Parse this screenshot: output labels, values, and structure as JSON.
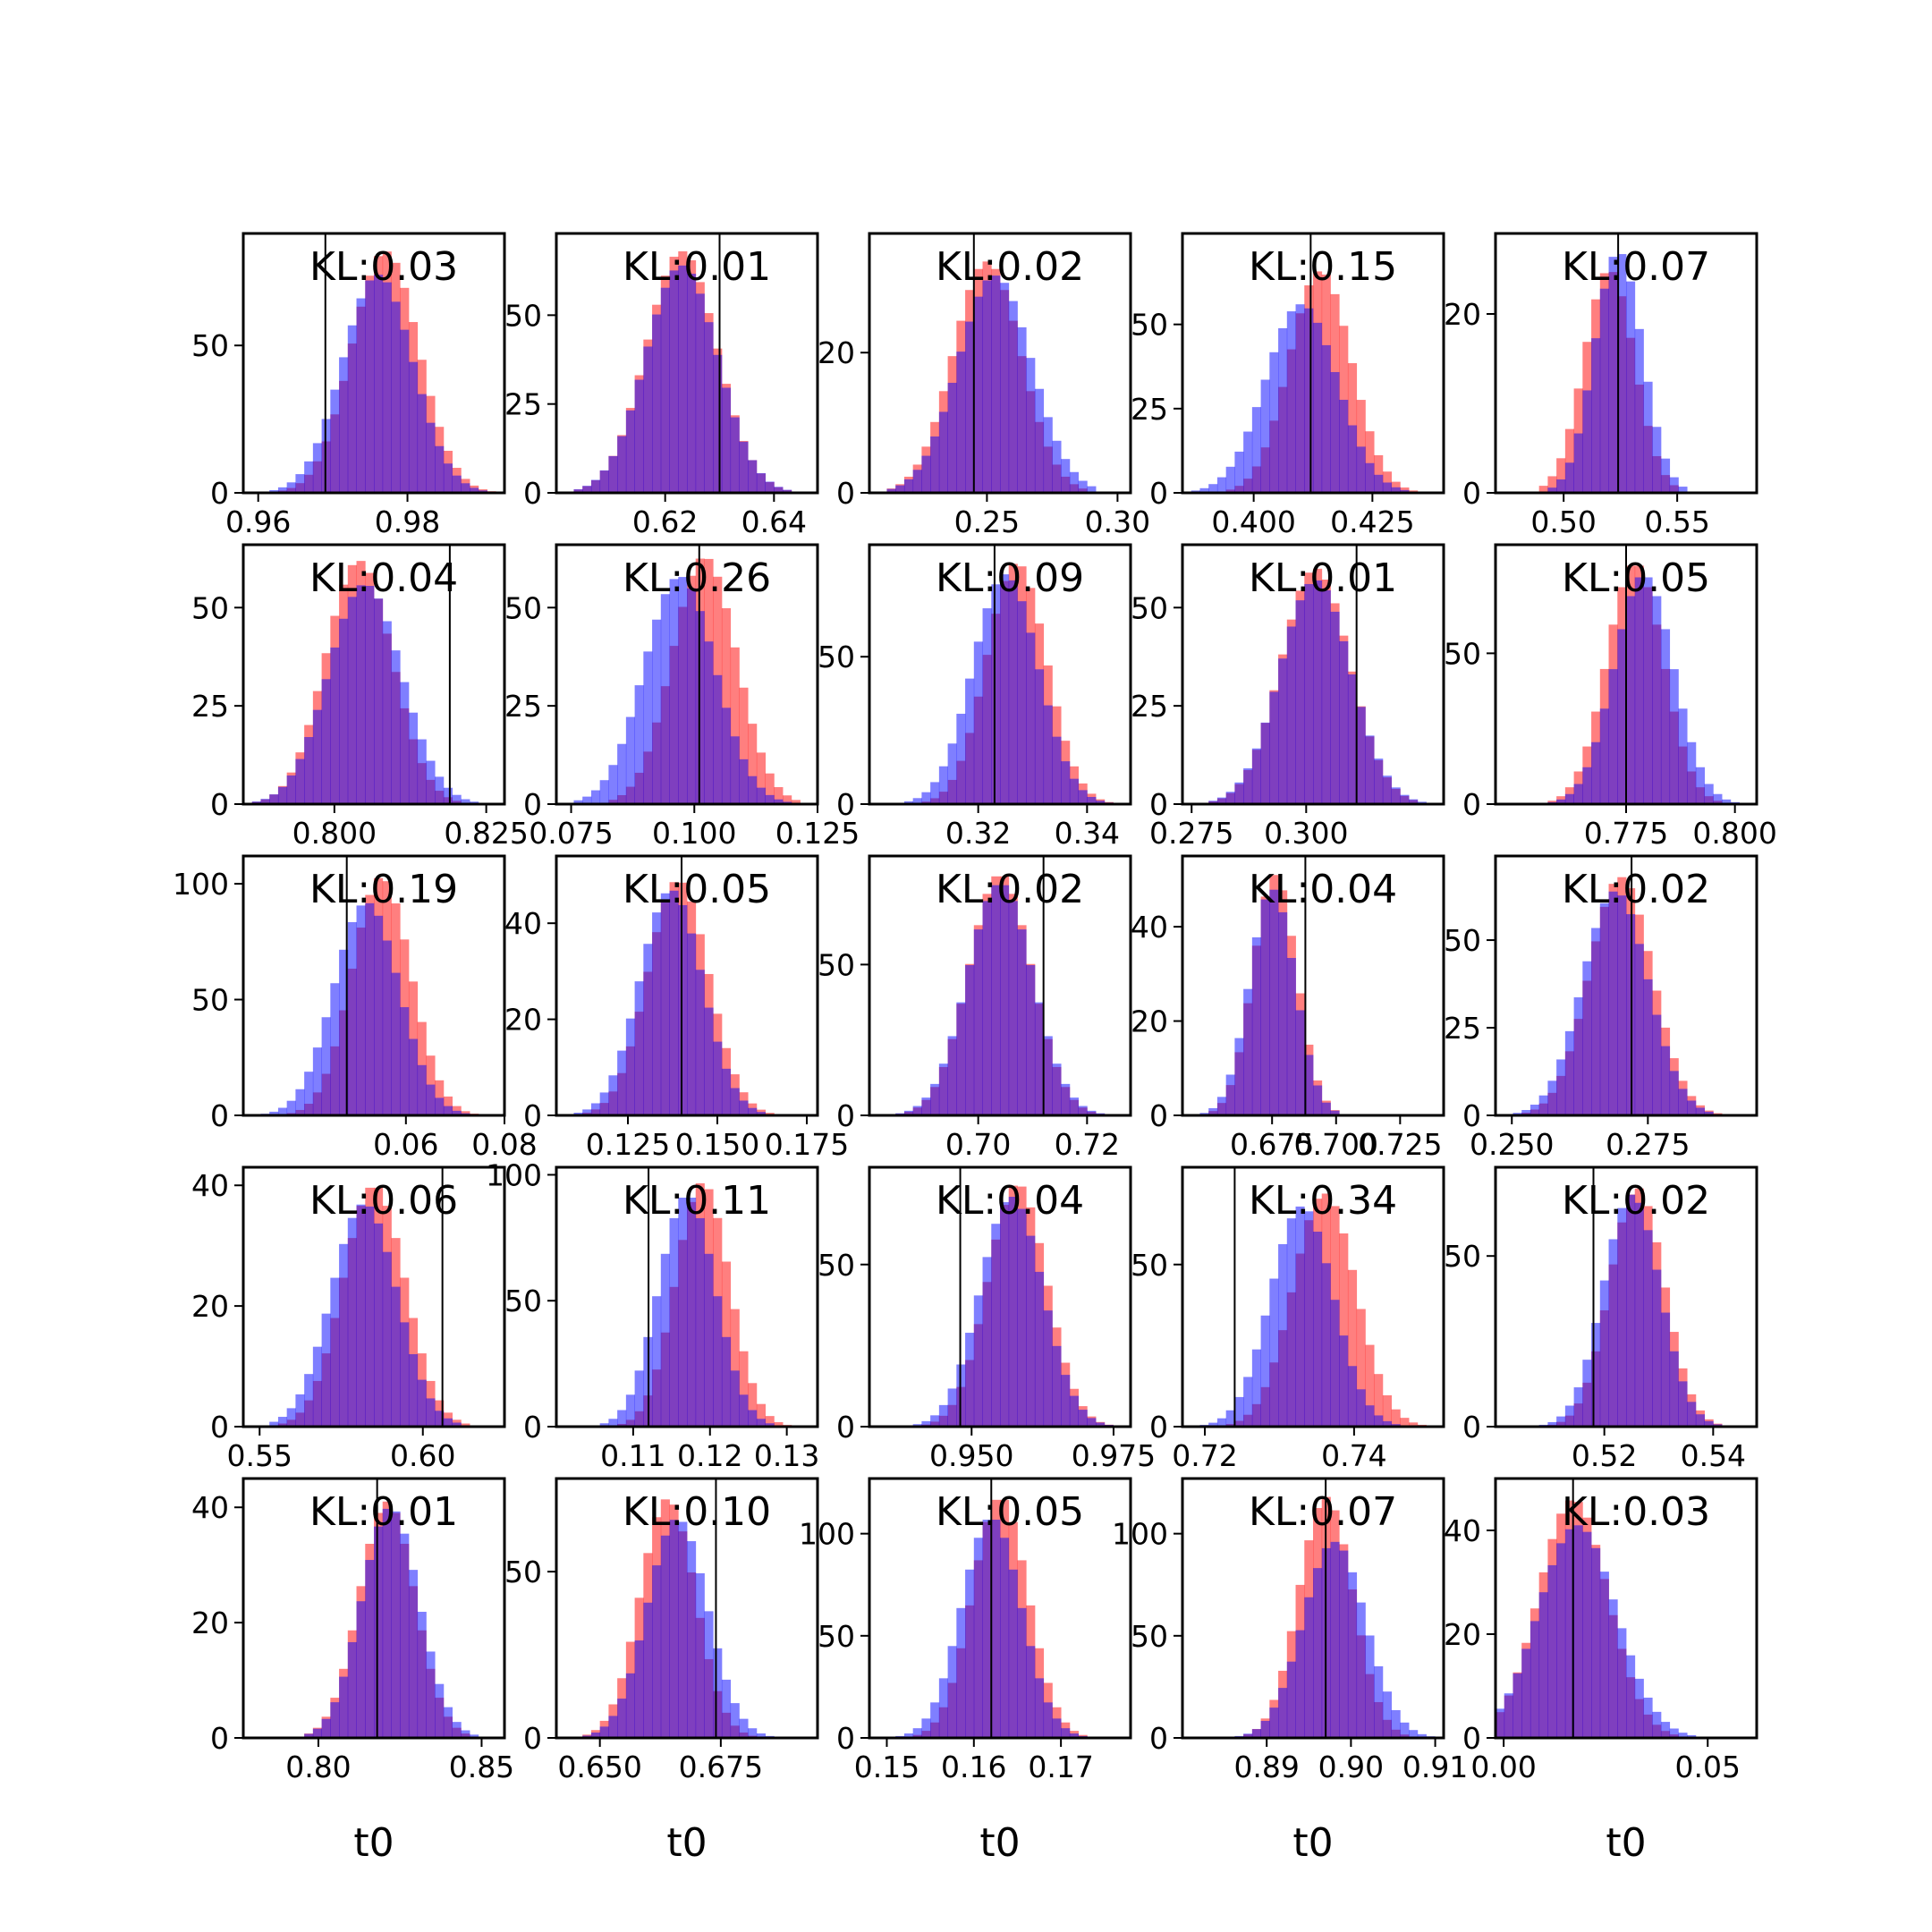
{
  "chart_data": {
    "type": "histogram-grid",
    "rows": 5,
    "cols": 5,
    "colors": {
      "red_series": "#ff0000",
      "blue_series": "#0000ff",
      "overlap": "#7f3fbf",
      "marker_line": "#000000"
    },
    "legend": "none",
    "grid": false,
    "panels": [
      {
        "kl": "KL:0.03",
        "xlim": [
          0.958,
          0.993
        ],
        "ylim": [
          0,
          88
        ],
        "xticks": [
          0.96,
          0.98
        ],
        "xtick_labels": [
          "0.96",
          "0.98"
        ],
        "yticks": [
          0,
          50
        ],
        "ytick_labels": [
          "0",
          "50"
        ],
        "line_x": 0.969,
        "red": {
          "mean": 0.977,
          "sd": 0.0045,
          "peak": 82
        },
        "blue": {
          "mean": 0.976,
          "sd": 0.0047,
          "peak": 74
        },
        "xlabel": ""
      },
      {
        "kl": "KL:0.01",
        "xlim": [
          0.6,
          0.648
        ],
        "ylim": [
          0,
          73
        ],
        "xticks": [
          0.62,
          0.64
        ],
        "xtick_labels": [
          "0.62",
          "0.64"
        ],
        "yticks": [
          0,
          25,
          50
        ],
        "ytick_labels": [
          "0",
          "25",
          "50"
        ],
        "line_x": 0.63,
        "red": {
          "mean": 0.623,
          "sd": 0.0065,
          "peak": 68
        },
        "blue": {
          "mean": 0.623,
          "sd": 0.0066,
          "peak": 64
        },
        "xlabel": ""
      },
      {
        "kl": "KL:0.02",
        "xlim": [
          0.205,
          0.305
        ],
        "ylim": [
          0,
          37
        ],
        "xticks": [
          0.25,
          0.3
        ],
        "xtick_labels": [
          "0.25",
          "0.30"
        ],
        "yticks": [
          0,
          20
        ],
        "ytick_labels": [
          "0",
          "20"
        ],
        "line_x": 0.245,
        "red": {
          "mean": 0.25,
          "sd": 0.013,
          "peak": 33
        },
        "blue": {
          "mean": 0.253,
          "sd": 0.014,
          "peak": 31
        },
        "xlabel": ""
      },
      {
        "kl": "KL:0.15",
        "xlim": [
          0.385,
          0.44
        ],
        "ylim": [
          0,
          77
        ],
        "xticks": [
          0.4,
          0.425
        ],
        "xtick_labels": [
          "0.400",
          "0.425"
        ],
        "yticks": [
          0,
          25,
          50
        ],
        "ytick_labels": [
          "0",
          "25",
          "50"
        ],
        "line_x": 0.412,
        "red": {
          "mean": 0.414,
          "sd": 0.0065,
          "peak": 66
        },
        "blue": {
          "mean": 0.41,
          "sd": 0.0075,
          "peak": 56
        },
        "xlabel": ""
      },
      {
        "kl": "KL:0.07",
        "xlim": [
          0.47,
          0.585
        ],
        "ylim": [
          0,
          29
        ],
        "xticks": [
          0.5,
          0.55
        ],
        "xtick_labels": [
          "0.50",
          "0.55"
        ],
        "yticks": [
          0,
          20
        ],
        "ytick_labels": [
          "0",
          "20"
        ],
        "line_x": 0.524,
        "red": {
          "mean": 0.52,
          "sd": 0.011,
          "peak": 25
        },
        "blue": {
          "mean": 0.524,
          "sd": 0.0105,
          "peak": 27
        },
        "xlabel": ""
      },
      {
        "kl": "KL:0.04",
        "xlim": [
          0.785,
          0.828
        ],
        "ylim": [
          0,
          66
        ],
        "xticks": [
          0.8,
          0.825
        ],
        "xtick_labels": [
          "0.800",
          "0.825"
        ],
        "yticks": [
          0,
          25,
          50
        ],
        "ytick_labels": [
          "0",
          "25",
          "50"
        ],
        "line_x": 0.819,
        "red": {
          "mean": 0.804,
          "sd": 0.0055,
          "peak": 62
        },
        "blue": {
          "mean": 0.805,
          "sd": 0.006,
          "peak": 56
        },
        "xlabel": ""
      },
      {
        "kl": "KL:0.26",
        "xlim": [
          0.072,
          0.125
        ],
        "ylim": [
          0,
          66
        ],
        "xticks": [
          0.075,
          0.1,
          0.125
        ],
        "xtick_labels": [
          "0.075",
          "0.100",
          "0.125"
        ],
        "yticks": [
          0,
          25,
          50
        ],
        "ytick_labels": [
          "0",
          "25",
          "50"
        ],
        "line_x": 0.101,
        "red": {
          "mean": 0.102,
          "sd": 0.0065,
          "peak": 63
        },
        "blue": {
          "mean": 0.097,
          "sd": 0.0072,
          "peak": 58
        },
        "xlabel": ""
      },
      {
        "kl": "KL:0.09",
        "xlim": [
          0.3,
          0.348
        ],
        "ylim": [
          0,
          88
        ],
        "xticks": [
          0.32,
          0.34
        ],
        "xtick_labels": [
          "0.32",
          "0.34"
        ],
        "yticks": [
          0,
          50
        ],
        "ytick_labels": [
          "0",
          "50"
        ],
        "line_x": 0.323,
        "red": {
          "mean": 0.327,
          "sd": 0.0055,
          "peak": 82
        },
        "blue": {
          "mean": 0.325,
          "sd": 0.006,
          "peak": 78
        },
        "xlabel": ""
      },
      {
        "kl": "KL:0.01",
        "xlim": [
          0.273,
          0.33
        ],
        "ylim": [
          0,
          66
        ],
        "xticks": [
          0.275,
          0.3
        ],
        "xtick_labels": [
          "0.275",
          "0.300"
        ],
        "yticks": [
          0,
          25,
          50
        ],
        "ytick_labels": [
          "0",
          "25",
          "50"
        ],
        "line_x": 0.311,
        "red": {
          "mean": 0.302,
          "sd": 0.0075,
          "peak": 60
        },
        "blue": {
          "mean": 0.302,
          "sd": 0.0077,
          "peak": 57
        },
        "xlabel": ""
      },
      {
        "kl": "KL:0.05",
        "xlim": [
          0.745,
          0.805
        ],
        "ylim": [
          0,
          86
        ],
        "xticks": [
          0.775,
          0.8
        ],
        "xtick_labels": [
          "0.775",
          "0.800"
        ],
        "yticks": [
          0,
          50
        ],
        "ytick_labels": [
          "0",
          "50"
        ],
        "line_x": 0.775,
        "red": {
          "mean": 0.777,
          "sd": 0.0065,
          "peak": 80
        },
        "blue": {
          "mean": 0.779,
          "sd": 0.0068,
          "peak": 76
        },
        "xlabel": ""
      },
      {
        "kl": "KL:0.19",
        "xlim": [
          0.027,
          0.08
        ],
        "ylim": [
          0,
          112
        ],
        "xticks": [
          0.06,
          0.08
        ],
        "xtick_labels": [
          "0.06",
          "0.08"
        ],
        "yticks": [
          0,
          50,
          100
        ],
        "ytick_labels": [
          "0",
          "50",
          "100"
        ],
        "line_x": 0.048,
        "red": {
          "mean": 0.055,
          "sd": 0.006,
          "peak": 103
        },
        "blue": {
          "mean": 0.052,
          "sd": 0.0066,
          "peak": 92
        },
        "xlabel": ""
      },
      {
        "kl": "KL:0.05",
        "xlim": [
          0.105,
          0.178
        ],
        "ylim": [
          0,
          54
        ],
        "xticks": [
          0.125,
          0.15,
          0.175
        ],
        "xtick_labels": [
          "0.125",
          "0.150",
          "0.175"
        ],
        "yticks": [
          0,
          20,
          40
        ],
        "ytick_labels": [
          "0",
          "20",
          "40"
        ],
        "line_x": 0.14,
        "red": {
          "mean": 0.139,
          "sd": 0.0085,
          "peak": 49
        },
        "blue": {
          "mean": 0.137,
          "sd": 0.0087,
          "peak": 47
        },
        "xlabel": ""
      },
      {
        "kl": "KL:0.02",
        "xlim": [
          0.68,
          0.728
        ],
        "ylim": [
          0,
          86
        ],
        "xticks": [
          0.7,
          0.72
        ],
        "xtick_labels": [
          "0.70",
          "0.72"
        ],
        "yticks": [
          0,
          50
        ],
        "ytick_labels": [
          "0",
          "50"
        ],
        "line_x": 0.712,
        "red": {
          "mean": 0.704,
          "sd": 0.0058,
          "peak": 80
        },
        "blue": {
          "mean": 0.704,
          "sd": 0.006,
          "peak": 77
        },
        "xlabel": ""
      },
      {
        "kl": "KL:0.04",
        "xlim": [
          0.64,
          0.742
        ],
        "ylim": [
          0,
          55
        ],
        "xticks": [
          0.675,
          0.7,
          0.725
        ],
        "xtick_labels": [
          "0.675",
          "0.700",
          "0.725"
        ],
        "yticks": [
          0,
          20,
          40
        ],
        "ytick_labels": [
          "0",
          "20",
          "40"
        ],
        "line_x": 0.688,
        "red": {
          "mean": 0.676,
          "sd": 0.0085,
          "peak": 51
        },
        "blue": {
          "mean": 0.675,
          "sd": 0.0088,
          "peak": 48
        },
        "xlabel": ""
      },
      {
        "kl": "KL:0.02",
        "xlim": [
          0.247,
          0.295
        ],
        "ylim": [
          0,
          74
        ],
        "xticks": [
          0.25,
          0.275
        ],
        "xtick_labels": [
          "0.250",
          "0.275"
        ],
        "yticks": [
          0,
          25,
          50
        ],
        "ytick_labels": [
          "0",
          "25",
          "50"
        ],
        "line_x": 0.272,
        "red": {
          "mean": 0.27,
          "sd": 0.0058,
          "peak": 68
        },
        "blue": {
          "mean": 0.269,
          "sd": 0.006,
          "peak": 64
        },
        "xlabel": ""
      },
      {
        "kl": "KL:0.06",
        "xlim": [
          0.545,
          0.625
        ],
        "ylim": [
          0,
          43
        ],
        "xticks": [
          0.55,
          0.6
        ],
        "xtick_labels": [
          "0.55",
          "0.60"
        ],
        "yticks": [
          0,
          20,
          40
        ],
        "ytick_labels": [
          "0",
          "20",
          "40"
        ],
        "line_x": 0.606,
        "red": {
          "mean": 0.585,
          "sd": 0.0095,
          "peak": 40
        },
        "blue": {
          "mean": 0.582,
          "sd": 0.01,
          "peak": 37
        },
        "xlabel": ""
      },
      {
        "kl": "KL:0.11",
        "xlim": [
          0.1,
          0.134
        ],
        "ylim": [
          0,
          103
        ],
        "xticks": [
          0.11,
          0.12,
          0.13
        ],
        "xtick_labels": [
          "0.11",
          "0.12",
          "0.13"
        ],
        "yticks": [
          0,
          50,
          100
        ],
        "ytick_labels": [
          "0",
          "50",
          "100"
        ],
        "line_x": 0.112,
        "red": {
          "mean": 0.119,
          "sd": 0.0035,
          "peak": 97
        },
        "blue": {
          "mean": 0.117,
          "sd": 0.0037,
          "peak": 92
        },
        "xlabel": ""
      },
      {
        "kl": "KL:0.04",
        "xlim": [
          0.932,
          0.978
        ],
        "ylim": [
          0,
          80
        ],
        "xticks": [
          0.95,
          0.975
        ],
        "xtick_labels": [
          "0.950",
          "0.975"
        ],
        "yticks": [
          0,
          50
        ],
        "ytick_labels": [
          "0",
          "50"
        ],
        "line_x": 0.948,
        "red": {
          "mean": 0.958,
          "sd": 0.0052,
          "peak": 75
        },
        "blue": {
          "mean": 0.957,
          "sd": 0.0055,
          "peak": 71
        },
        "xlabel": ""
      },
      {
        "kl": "KL:0.34",
        "xlim": [
          0.717,
          0.752
        ],
        "ylim": [
          0,
          80
        ],
        "xticks": [
          0.72,
          0.74
        ],
        "xtick_labels": [
          "0.72",
          "0.74"
        ],
        "yticks": [
          0,
          50
        ],
        "ytick_labels": [
          "0",
          "50"
        ],
        "line_x": 0.724,
        "red": {
          "mean": 0.736,
          "sd": 0.0042,
          "peak": 72
        },
        "blue": {
          "mean": 0.733,
          "sd": 0.0042,
          "peak": 68
        },
        "xlabel": ""
      },
      {
        "kl": "KL:0.02",
        "xlim": [
          0.5,
          0.548
        ],
        "ylim": [
          0,
          76
        ],
        "xticks": [
          0.52,
          0.54
        ],
        "xtick_labels": [
          "0.52",
          "0.54"
        ],
        "yticks": [
          0,
          50
        ],
        "ytick_labels": [
          "0",
          "50"
        ],
        "line_x": 0.518,
        "red": {
          "mean": 0.526,
          "sd": 0.005,
          "peak": 70
        },
        "blue": {
          "mean": 0.525,
          "sd": 0.0052,
          "peak": 68
        },
        "xlabel": ""
      },
      {
        "kl": "KL:0.01",
        "xlim": [
          0.777,
          0.857
        ],
        "ylim": [
          0,
          45
        ],
        "xticks": [
          0.8,
          0.85
        ],
        "xtick_labels": [
          "0.80",
          "0.85"
        ],
        "yticks": [
          0,
          20,
          40
        ],
        "ytick_labels": [
          "0",
          "20",
          "40"
        ],
        "line_x": 0.818,
        "red": {
          "mean": 0.821,
          "sd": 0.0085,
          "peak": 41
        },
        "blue": {
          "mean": 0.822,
          "sd": 0.0088,
          "peak": 40
        },
        "xlabel": "t0"
      },
      {
        "kl": "KL:0.10",
        "xlim": [
          0.641,
          0.695
        ],
        "ylim": [
          0,
          78
        ],
        "xticks": [
          0.65,
          0.675
        ],
        "xtick_labels": [
          "0.650",
          "0.675"
        ],
        "yticks": [
          0,
          50
        ],
        "ytick_labels": [
          "0",
          "50"
        ],
        "line_x": 0.674,
        "red": {
          "mean": 0.664,
          "sd": 0.0057,
          "peak": 72
        },
        "blue": {
          "mean": 0.666,
          "sd": 0.0062,
          "peak": 66
        },
        "xlabel": "t0"
      },
      {
        "kl": "KL:0.05",
        "xlim": [
          0.148,
          0.178
        ],
        "ylim": [
          0,
          127
        ],
        "xticks": [
          0.15,
          0.16,
          0.17
        ],
        "xtick_labels": [
          "0.15",
          "0.16",
          "0.17"
        ],
        "yticks": [
          0,
          50,
          100
        ],
        "ytick_labels": [
          "0",
          "50",
          "100"
        ],
        "line_x": 0.162,
        "red": {
          "mean": 0.163,
          "sd": 0.0032,
          "peak": 118
        },
        "blue": {
          "mean": 0.162,
          "sd": 0.0034,
          "peak": 108
        },
        "xlabel": "t0"
      },
      {
        "kl": "KL:0.07",
        "xlim": [
          0.88,
          0.911
        ],
        "ylim": [
          0,
          127
        ],
        "xticks": [
          0.89,
          0.9,
          0.91
        ],
        "xtick_labels": [
          "0.89",
          "0.90",
          "0.91"
        ],
        "yticks": [
          0,
          50,
          100
        ],
        "ytick_labels": [
          "0",
          "50",
          "100"
        ],
        "line_x": 0.897,
        "red": {
          "mean": 0.897,
          "sd": 0.0032,
          "peak": 118
        },
        "blue": {
          "mean": 0.898,
          "sd": 0.0037,
          "peak": 96
        },
        "xlabel": "t0"
      },
      {
        "kl": "KL:0.03",
        "xlim": [
          -0.002,
          0.062
        ],
        "ylim": [
          0,
          50
        ],
        "xticks": [
          0.0,
          0.05
        ],
        "xtick_labels": [
          "0.00",
          "0.05"
        ],
        "yticks": [
          0,
          20,
          40
        ],
        "ytick_labels": [
          "0",
          "20",
          "40"
        ],
        "line_x": 0.017,
        "red": {
          "mean": 0.017,
          "sd": 0.0085,
          "peak": 46
        },
        "blue": {
          "mean": 0.018,
          "sd": 0.0095,
          "peak": 41
        },
        "xlabel": "t0"
      }
    ]
  }
}
